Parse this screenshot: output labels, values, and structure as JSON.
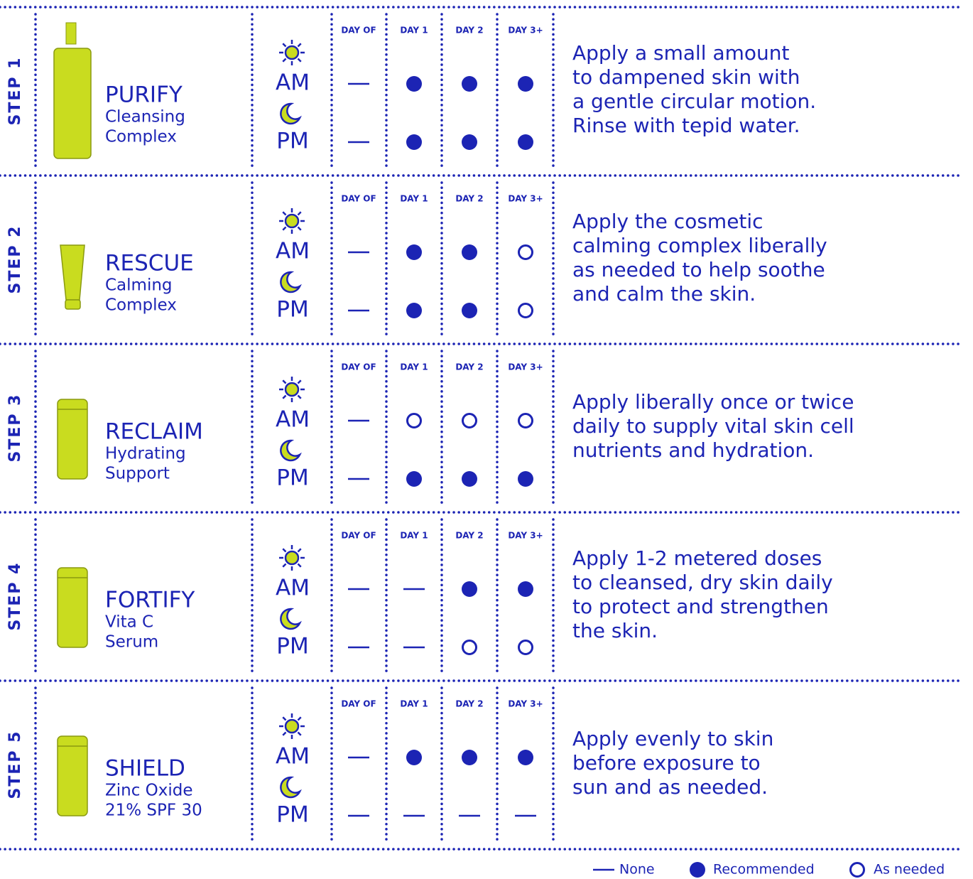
{
  "day_headers": [
    "DAY OF",
    "DAY 1",
    "DAY 2",
    "DAY 3+"
  ],
  "times": [
    "AM",
    "PM"
  ],
  "steps": [
    {
      "label": "STEP 1",
      "name": "PURIFY",
      "subtitle": [
        "Cleansing",
        "Complex"
      ],
      "am": [
        "None",
        "Recommended",
        "Recommended",
        "Recommended"
      ],
      "pm": [
        "None",
        "Recommended",
        "Recommended",
        "Recommended"
      ],
      "description": [
        "Apply a small amount",
        "to dampened skin with",
        "a gentle circular motion.",
        "Rinse with tepid water."
      ]
    },
    {
      "label": "STEP 2",
      "name": "RESCUE",
      "subtitle": [
        "Calming",
        "Complex"
      ],
      "am": [
        "None",
        "Recommended",
        "Recommended",
        "As needed"
      ],
      "pm": [
        "None",
        "Recommended",
        "Recommended",
        "As needed"
      ],
      "description": [
        "Apply the cosmetic",
        "calming complex liberally",
        "as needed to help soothe",
        "and calm the skin."
      ]
    },
    {
      "label": "STEP 3",
      "name": "RECLAIM",
      "subtitle": [
        "Hydrating",
        "Support"
      ],
      "am": [
        "None",
        "As needed",
        "As needed",
        "As needed"
      ],
      "pm": [
        "None",
        "Recommended",
        "Recommended",
        "Recommended"
      ],
      "description": [
        "Apply liberally once or twice",
        "daily to supply vital skin cell",
        "nutrients and hydration."
      ]
    },
    {
      "label": "STEP 4",
      "name": "FORTIFY",
      "subtitle": [
        "Vita C",
        "Serum"
      ],
      "am": [
        "None",
        "None",
        "Recommended",
        "Recommended"
      ],
      "pm": [
        "None",
        "None",
        "As needed",
        "As needed"
      ],
      "description": [
        "Apply 1-2 metered doses",
        "to cleansed, dry skin daily",
        "to protect and strengthen",
        "the skin."
      ]
    },
    {
      "label": "STEP 5",
      "name": "SHIELD",
      "subtitle": [
        "Zinc Oxide",
        "21% SPF 30"
      ],
      "am": [
        "None",
        "Recommended",
        "Recommended",
        "Recommended"
      ],
      "pm": [
        "None",
        "None",
        "None",
        "None"
      ],
      "description": [
        "Apply evenly to skin",
        "before exposure to",
        "sun and as needed."
      ]
    }
  ],
  "legend": [
    "None",
    "Recommended",
    "As needed"
  ]
}
